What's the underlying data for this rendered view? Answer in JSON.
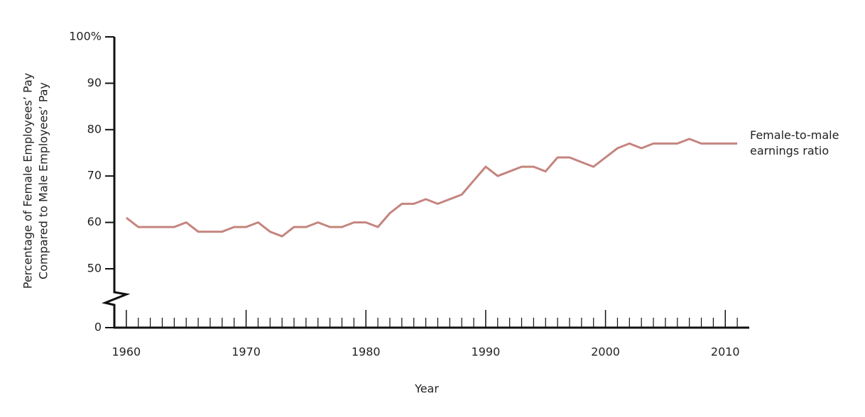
{
  "chart_data": {
    "type": "line",
    "x_label": "Year",
    "y_label": [
      "Percentage of Female Employees’ Pay",
      "Compared to Male Employees’ Pay"
    ],
    "x": [
      1960,
      1961,
      1962,
      1963,
      1964,
      1965,
      1966,
      1967,
      1968,
      1969,
      1970,
      1971,
      1972,
      1973,
      1974,
      1975,
      1976,
      1977,
      1978,
      1979,
      1980,
      1981,
      1982,
      1983,
      1984,
      1985,
      1986,
      1987,
      1988,
      1989,
      1990,
      1991,
      1992,
      1993,
      1994,
      1995,
      1996,
      1997,
      1998,
      1999,
      2000,
      2001,
      2002,
      2003,
      2004,
      2005,
      2006,
      2007,
      2008,
      2009,
      2010,
      2011
    ],
    "series": [
      {
        "name": "Female-to-male earnings ratio",
        "color": "#c4857f",
        "values": [
          61,
          59,
          59,
          59,
          59,
          60,
          58,
          58,
          58,
          59,
          59,
          60,
          58,
          57,
          59,
          59,
          60,
          59,
          59,
          60,
          60,
          59,
          62,
          64,
          64,
          65,
          64,
          65,
          66,
          69,
          72,
          70,
          71,
          72,
          72,
          71,
          74,
          74,
          73,
          72,
          74,
          76,
          77,
          76,
          77,
          77,
          77,
          78,
          77,
          77,
          77,
          77
        ]
      }
    ],
    "xlim": [
      1959,
      2012
    ],
    "xticks": [
      1960,
      1970,
      1980,
      1990,
      2000,
      2010
    ],
    "xminorticks": [
      1961,
      1962,
      1963,
      1964,
      1965,
      1966,
      1967,
      1968,
      1969,
      1971,
      1972,
      1973,
      1974,
      1975,
      1976,
      1977,
      1978,
      1979,
      1981,
      1982,
      1983,
      1984,
      1985,
      1986,
      1987,
      1988,
      1989,
      1991,
      1992,
      1993,
      1994,
      1995,
      1996,
      1997,
      1998,
      1999,
      2001,
      2002,
      2003,
      2004,
      2005,
      2006,
      2007,
      2008,
      2009,
      2011
    ],
    "ylim": [
      0,
      100
    ],
    "yticks": [
      0,
      50,
      60,
      70,
      80,
      90,
      {
        "value": 100,
        "label": "100%"
      }
    ],
    "axis_break": true,
    "grid": false
  }
}
